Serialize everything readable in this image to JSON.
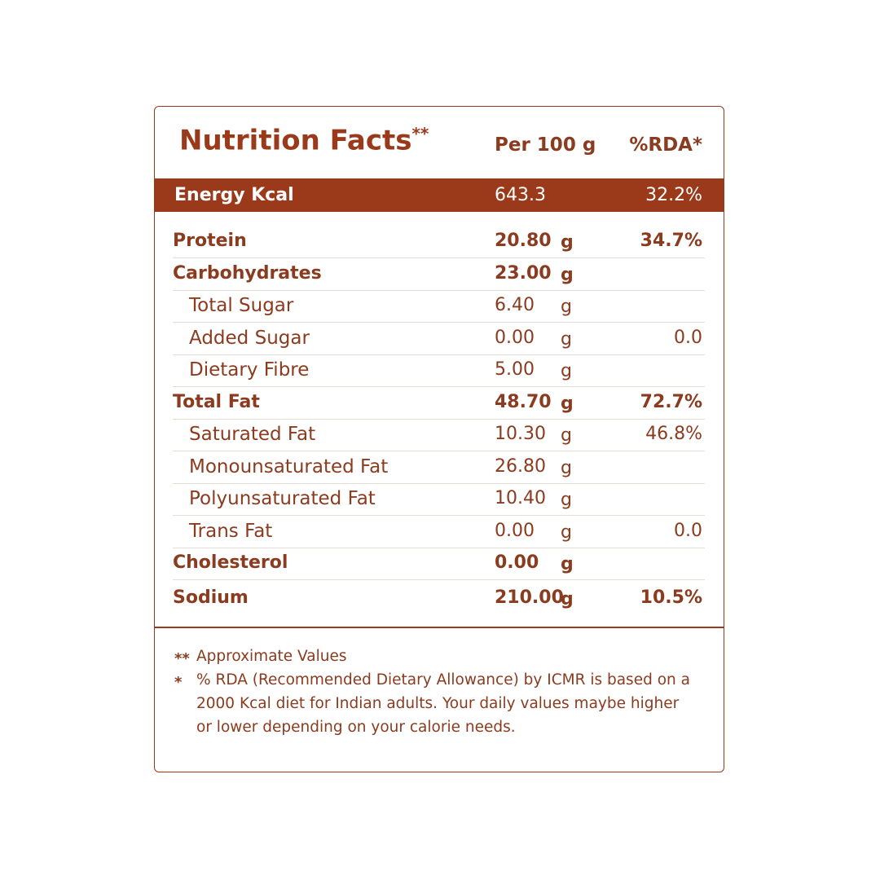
{
  "header": {
    "title": "Nutrition Facts",
    "title_mark": "**",
    "amount_heading": "Per 100 g",
    "rda_heading": "%RDA*"
  },
  "energy": {
    "label": "Energy Kcal",
    "amount": "643.3",
    "rda": "32.2%"
  },
  "rows": [
    {
      "label": "Protein",
      "amount": "20.80",
      "unit": "g",
      "rda": "34.7%",
      "bold": true
    },
    {
      "label": "Carbohydrates",
      "amount": "23.00",
      "unit": "g",
      "bold": true
    },
    {
      "label": "Total Sugar",
      "amount": "6.40",
      "unit": "g",
      "bold": false
    },
    {
      "label": "Added Sugar",
      "amount": "0.00",
      "unit": "g",
      "rda": "0.0",
      "bold": false
    },
    {
      "label": "Dietary Fibre",
      "amount": "5.00",
      "unit": "g",
      "bold": false
    },
    {
      "label": "Total Fat",
      "amount": "48.70",
      "unit": "g",
      "rda": "72.7%",
      "bold": true
    },
    {
      "label": "Saturated Fat",
      "amount": "10.30",
      "unit": "g",
      "rda": "46.8%",
      "bold": false
    },
    {
      "label": "Monounsaturated Fat",
      "amount": "26.80",
      "unit": "g",
      "bold": false
    },
    {
      "label": "Polyunsaturated Fat",
      "amount": "10.40",
      "unit": "g",
      "bold": false
    },
    {
      "label": "Trans Fat",
      "amount": "0.00",
      "unit": "g",
      "rda": "0.0",
      "bold": false
    },
    {
      "label": "Cholesterol",
      "amount": "0.00",
      "unit": "g",
      "bold": true
    },
    {
      "label": "Sodium",
      "amount": "210.00",
      "unit": "g",
      "rda": "10.5%",
      "bold": true
    }
  ],
  "footnotes": [
    {
      "mark": "**",
      "text": "Approximate Values"
    },
    {
      "mark": "*",
      "text": "% RDA (Recommended Dietary Allowance) by ICMR is based on a 2000 Kcal diet for Indian adults. Your daily values maybe higher or lower depending on your calorie needs."
    }
  ]
}
